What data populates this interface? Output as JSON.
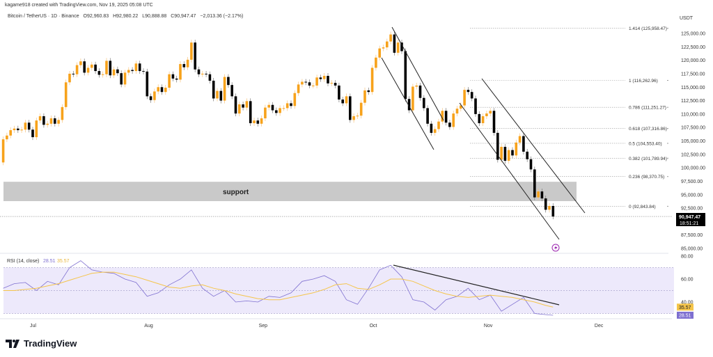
{
  "header": {
    "credit": "kagame918 created with TradingView.com, Nov 19, 2025 05:08 UTC",
    "symbol": "Bitcoin / TetherUS · 1D · Binance",
    "open": "O92,960.83",
    "high": "H92,980.22",
    "low": "L90,888.88",
    "close": "C90,947.47",
    "change": "−2,013.36 (−2.17%)"
  },
  "currency": "USDT",
  "colors": {
    "up": "#f7a21b",
    "down": "#000000",
    "rsi": "#7e6fd0",
    "rsi_ma": "#f5c54a",
    "rsi_band": "#ede9fb",
    "support": "#c9c9c9",
    "lightning": "#9c27b0"
  },
  "annotations": {
    "support_label": "support",
    "support_range": [
      93800,
      97400
    ]
  },
  "brand": "TradingView",
  "chart_data": [
    {
      "type": "candlestick",
      "title": "Bitcoin / TetherUS · 1D · Binance",
      "start_date": "2025-06-23",
      "first_open": 101000,
      "closes": [
        105300,
        106000,
        107000,
        107300,
        107000,
        107100,
        108400,
        107100,
        105700,
        108800,
        109600,
        108000,
        108200,
        109200,
        108200,
        108900,
        111300,
        115900,
        117500,
        117400,
        119100,
        119800,
        117700,
        118600,
        119200,
        118000,
        117300,
        117400,
        119900,
        117200,
        118300,
        117600,
        115500,
        117700,
        118200,
        118000,
        119400,
        118000,
        117900,
        113300,
        112600,
        114200,
        115000,
        114100,
        114900,
        117400,
        116600,
        116400,
        119300,
        118700,
        120100,
        123300,
        118300,
        117400,
        117500,
        117400,
        116200,
        112900,
        114300,
        112500,
        116900,
        115400,
        113300,
        110100,
        111800,
        111200,
        112400,
        108300,
        108800,
        108200,
        109200,
        111200,
        111700,
        110700,
        110200,
        111100,
        111100,
        112000,
        111500,
        113900,
        115500,
        116000,
        115900,
        115300,
        115300,
        116800,
        116500,
        117100,
        115700,
        115800,
        115300,
        112700,
        112000,
        113300,
        108900,
        109600,
        109700,
        112100,
        114400,
        114100,
        118600,
        120500,
        122200,
        122400,
        123500,
        124800,
        121400,
        123300,
        121700,
        112800,
        110700,
        115100,
        115300,
        113000,
        111100,
        108200,
        106500,
        107200,
        108600,
        110600,
        108400,
        107600,
        110100,
        111000,
        111600,
        114500,
        114100,
        112900,
        110000,
        108300,
        109600,
        110100,
        110600,
        106500,
        101500,
        103900,
        101300,
        103300,
        102300,
        104700,
        105900,
        103000,
        101600,
        99700,
        94500,
        95600,
        94300,
        92200,
        92900,
        90947.47
      ],
      "y_axis": {
        "ticks": [
          "125,000.00",
          "122,500.00",
          "120,000.00",
          "117,500.00",
          "115,000.00",
          "112,500.00",
          "110,000.00",
          "107,500.00",
          "105,000.00",
          "102,500.00",
          "100,000.00",
          "97,500.00",
          "95,000.00",
          "92,500.00",
          "87,500.00",
          "85,000.00"
        ],
        "tick_values": [
          125000,
          122500,
          120000,
          117500,
          115000,
          112500,
          110000,
          107500,
          105000,
          102500,
          100000,
          97500,
          95000,
          92500,
          87500,
          85000
        ],
        "range": [
          84000,
          127000
        ]
      },
      "x_axis": {
        "ticks": [
          "Jul",
          "Aug",
          "Sep",
          "Oct",
          "Nov",
          "Dec"
        ],
        "tick_dates": [
          "2025-07-01",
          "2025-08-01",
          "2025-09-01",
          "2025-10-01",
          "2025-11-01",
          "2025-12-01"
        ]
      },
      "last_price": {
        "value": "90,947.47",
        "countdown": "18:51:21"
      },
      "fibonacci": [
        {
          "label": "1.414 (125,958.47)",
          "value": 125958.47
        },
        {
          "label": "1 (116,262.96)",
          "value": 116262.96
        },
        {
          "label": "0.786 (111,251.27)",
          "value": 111251.27
        },
        {
          "label": "0.618 (107,316.86)",
          "value": 107316.86
        },
        {
          "label": "0.5 (104,553.40)",
          "value": 104553.4
        },
        {
          "label": "0.382 (101,789.94)",
          "value": 101789.94
        },
        {
          "label": "0.236 (98,370.75)",
          "value": 98370.75
        },
        {
          "label": "0 (92,843.84)",
          "value": 92843.84
        }
      ]
    },
    {
      "type": "line",
      "title": "RSI (14, close)",
      "series": [
        {
          "name": "RSI",
          "last": "28.51",
          "sample_every_days": 3,
          "values": [
            52,
            56,
            57,
            50,
            58,
            55,
            70,
            76,
            68,
            66,
            65,
            60,
            57,
            45,
            48,
            55,
            60,
            68,
            52,
            45,
            50,
            40,
            41,
            40,
            45,
            44,
            48,
            58,
            60,
            63,
            58,
            42,
            38,
            52,
            68,
            72,
            62,
            42,
            40,
            33,
            42,
            45,
            52,
            42,
            46,
            32,
            38,
            44,
            30,
            29,
            28.51
          ]
        },
        {
          "name": "RSI-based MA",
          "last": "35.57",
          "sample_every_days": 3,
          "values": [
            50,
            50,
            51,
            52,
            54,
            56,
            59,
            62,
            65,
            66,
            66,
            64,
            62,
            59,
            56,
            53,
            52,
            54,
            55,
            52,
            50,
            47,
            45,
            43,
            42,
            42,
            44,
            46,
            48,
            51,
            55,
            56,
            52,
            51,
            55,
            60,
            60,
            58,
            54,
            50,
            47,
            45,
            44,
            45,
            46,
            45,
            44,
            42,
            40,
            37,
            35.57
          ]
        }
      ],
      "y_axis": {
        "ticks": [
          "80.00",
          "60.00",
          "40.00"
        ],
        "tick_values": [
          80,
          60,
          40
        ],
        "range": [
          25,
          82
        ],
        "bands": [
          30,
          50,
          70
        ]
      }
    }
  ]
}
